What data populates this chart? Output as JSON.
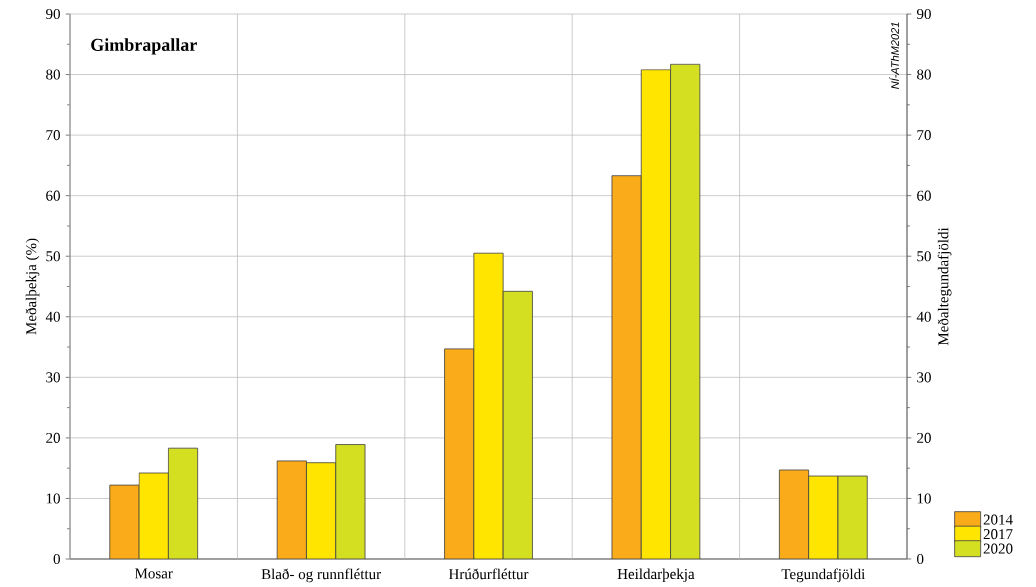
{
  "chart_data": {
    "type": "bar",
    "title": "Gimbrapallar",
    "ylabel": "Meðalþekja (%)",
    "y2label": "Meðaltegundafjöldi",
    "categories": [
      "Mosar",
      "Blað- og runnfléttur",
      "Hrúðurfléttur",
      "Heildarþekja",
      "Tegundafjöldi"
    ],
    "series": [
      {
        "name": "2014",
        "color": "#f9ab19",
        "values": [
          12.2,
          16.2,
          34.7,
          63.3,
          14.7
        ]
      },
      {
        "name": "2017",
        "color": "#ffe500",
        "values": [
          14.2,
          15.9,
          50.5,
          80.8,
          13.7
        ]
      },
      {
        "name": "2020",
        "color": "#d5df22",
        "values": [
          18.3,
          18.9,
          44.2,
          81.7,
          13.7
        ]
      }
    ],
    "ylim": [
      0,
      90
    ],
    "yticks": [
      0,
      10,
      20,
      30,
      40,
      50,
      60,
      70,
      80,
      90
    ],
    "y2lim": [
      0,
      90
    ],
    "y2ticks": [
      0,
      10,
      20,
      30,
      40,
      50,
      60,
      70,
      80,
      90
    ],
    "grid": true,
    "legend": "bottom right",
    "annotations": [
      "NÍ-AThM2021"
    ]
  }
}
